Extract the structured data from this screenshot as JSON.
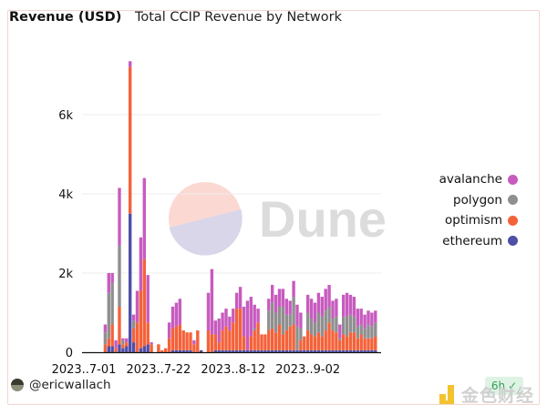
{
  "header": {
    "title": "Revenue (USD)",
    "subtitle": "Total CCIP Revenue by Network"
  },
  "watermark_chart": "Dune",
  "footer": {
    "author": "@ericwallach",
    "age_badge": "6h",
    "watermark": "金色财经"
  },
  "colors": {
    "avalanche": "#c75bbf",
    "polygon": "#8f8f8f",
    "optimism": "#f4623a",
    "ethereum": "#4f4fa8",
    "grid": "#eeeeee",
    "axis": "#111111"
  },
  "chart_data": {
    "type": "bar",
    "stacked": true,
    "title": "Total CCIP Revenue by Network",
    "ylabel": "Revenue (USD)",
    "xlabel": "",
    "ylim": [
      0,
      7500
    ],
    "yticks": [
      0,
      2000,
      4000,
      6000
    ],
    "ytick_labels": [
      "0",
      "2k",
      "4k",
      "6k"
    ],
    "xtick_labels": [
      "2023..7-01",
      "2023..7-22",
      "2023..8-12",
      "2023..9-02"
    ],
    "xtick_dates": [
      "2023-07-01",
      "2023-07-22",
      "2023-08-12",
      "2023-09-02"
    ],
    "grid": true,
    "legend": {
      "position": "right",
      "entries": [
        "avalanche",
        "polygon",
        "optimism",
        "ethereum"
      ]
    },
    "start_date": "2023-07-07",
    "series": [
      {
        "name": "ethereum",
        "values": [
          0,
          150,
          150,
          0,
          200,
          100,
          150,
          3500,
          250,
          0,
          100,
          150,
          200,
          0,
          0,
          0,
          0,
          0,
          0,
          50,
          50,
          50,
          50,
          50,
          50,
          0,
          0,
          50,
          0,
          0,
          0,
          50,
          50,
          50,
          50,
          50,
          50,
          50,
          50,
          50,
          50,
          50,
          50,
          50,
          50,
          50,
          50,
          50,
          50,
          50,
          50,
          50,
          50,
          50,
          50,
          50,
          50,
          50,
          50,
          50,
          50,
          50,
          50,
          50,
          50,
          50,
          50,
          50,
          50,
          50,
          50,
          50,
          50,
          50,
          50,
          50,
          50
        ]
      },
      {
        "name": "optimism",
        "values": [
          200,
          200,
          550,
          100,
          950,
          100,
          100,
          3700,
          350,
          750,
          1450,
          2200,
          550,
          200,
          0,
          200,
          50,
          100,
          350,
          550,
          600,
          650,
          500,
          450,
          450,
          200,
          550,
          0,
          0,
          550,
          450,
          400,
          200,
          500,
          600,
          500,
          700,
          1050,
          1050,
          350,
          0,
          350,
          500,
          700,
          400,
          400,
          500,
          550,
          450,
          650,
          400,
          500,
          600,
          650,
          0,
          250,
          350,
          500,
          400,
          350,
          450,
          350,
          500,
          700,
          500,
          450,
          250,
          400,
          350,
          450,
          450,
          300,
          400,
          300,
          300,
          300,
          350
        ]
      },
      {
        "name": "polygon",
        "values": [
          300,
          1150,
          1050,
          0,
          1550,
          100,
          0,
          0,
          200,
          0,
          0,
          0,
          0,
          0,
          0,
          0,
          0,
          0,
          0,
          0,
          0,
          0,
          0,
          0,
          0,
          0,
          0,
          0,
          0,
          0,
          0,
          0,
          0,
          0,
          0,
          0,
          0,
          0,
          0,
          0,
          0,
          0,
          50,
          0,
          0,
          0,
          500,
          650,
          500,
          450,
          700,
          400,
          300,
          700,
          600,
          300,
          0,
          450,
          400,
          350,
          500,
          500,
          500,
          400,
          300,
          400,
          50,
          450,
          500,
          450,
          400,
          300,
          250,
          250,
          350,
          300,
          350
        ]
      },
      {
        "name": "avalanche",
        "values": [
          200,
          500,
          250,
          200,
          1450,
          50,
          100,
          150,
          150,
          800,
          1350,
          2050,
          1200,
          50,
          0,
          0,
          0,
          0,
          400,
          550,
          600,
          650,
          0,
          0,
          0,
          100,
          0,
          0,
          0,
          950,
          1650,
          350,
          600,
          450,
          450,
          350,
          350,
          400,
          550,
          750,
          1250,
          1000,
          600,
          350,
          0,
          0,
          300,
          450,
          450,
          450,
          450,
          400,
          350,
          400,
          550,
          400,
          0,
          450,
          500,
          500,
          500,
          500,
          550,
          550,
          450,
          450,
          350,
          550,
          600,
          500,
          500,
          450,
          400,
          350,
          350,
          350,
          300
        ]
      }
    ]
  }
}
